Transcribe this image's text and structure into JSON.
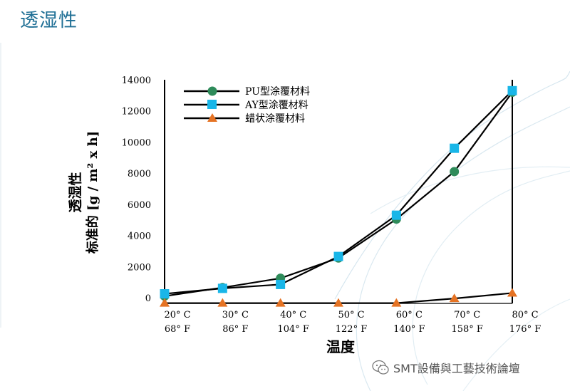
{
  "page": {
    "title": "透湿性"
  },
  "watermark": {
    "text": "SMT設備與工藝技術論壇"
  },
  "colors": {
    "pu": "#2e8b5a",
    "ay": "#19b6e8",
    "wax": "#e57324",
    "line": "#000000",
    "deco": "#cfe4ef"
  },
  "chart_data": {
    "type": "line",
    "title": "",
    "xlabel": "温度",
    "ylabel_line1": "透湿性",
    "ylabel_line2": "标准的 [g / m² x h]",
    "ylim": [
      0,
      14000
    ],
    "yticks": [
      0,
      2000,
      4000,
      6000,
      8000,
      10000,
      12000,
      14000
    ],
    "ytick_labels": [
      "0",
      "2000",
      "4000",
      "6000",
      "8000",
      "10000",
      "12000",
      "14000"
    ],
    "x_categories": [
      {
        "c": "20° C",
        "f": "68° F"
      },
      {
        "c": "30° C",
        "f": "86° F"
      },
      {
        "c": "40° C",
        "f": "104° F"
      },
      {
        "c": "50° C",
        "f": "122° F"
      },
      {
        "c": "60° C",
        "f": "140° F"
      },
      {
        "c": "70° C",
        "f": "158° F"
      },
      {
        "c": "80° C",
        "f": "176° F"
      }
    ],
    "legend_position": "top-left",
    "series": [
      {
        "name": "PU型涂覆材料",
        "marker": "circle",
        "color_key": "pu",
        "values": [
          100,
          650,
          1250,
          2550,
          5050,
          8100,
          13200
        ]
      },
      {
        "name": "AY型涂覆材料",
        "marker": "square",
        "color_key": "ay",
        "values": [
          250,
          600,
          850,
          2650,
          5300,
          9600,
          13300
        ]
      },
      {
        "name": "蜡状涂覆材料",
        "marker": "triangle",
        "color_key": "wax",
        "values": [
          -350,
          -350,
          -350,
          -350,
          -350,
          -50,
          300
        ]
      }
    ]
  }
}
